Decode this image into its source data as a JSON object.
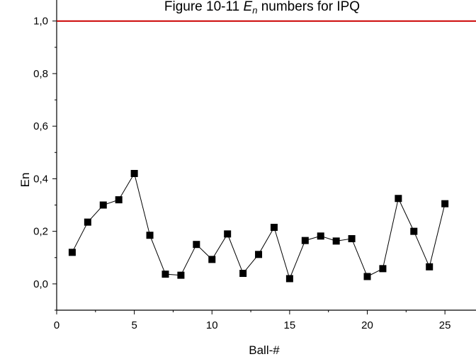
{
  "chart_data": {
    "type": "line",
    "title": "Figure 10-11 En numbers for IPQ",
    "xlabel": "Ball-#",
    "ylabel": "En",
    "xlim": [
      0,
      27
    ],
    "ylim": [
      -0.1,
      1.08
    ],
    "x_ticks": [
      0,
      5,
      10,
      15,
      20,
      25
    ],
    "x_tick_labels": [
      "0",
      "5",
      "10",
      "15",
      "20",
      "25"
    ],
    "y_ticks": [
      0.0,
      0.2,
      0.4,
      0.6,
      0.8,
      1.0
    ],
    "y_tick_labels": [
      "0,0",
      "0,2",
      "0,4",
      "0,6",
      "0,8",
      "1,0"
    ],
    "grid": false,
    "reference_line": {
      "y": 1.0,
      "color": "#cc0000"
    },
    "series": [
      {
        "marker": "square",
        "color": "#000000",
        "x": [
          1,
          2,
          3,
          4,
          5,
          6,
          7,
          8,
          9,
          10,
          11,
          12,
          13,
          14,
          15,
          16,
          17,
          18,
          19,
          20,
          21,
          22,
          23,
          24,
          25
        ],
        "values": [
          0.12,
          0.235,
          0.3,
          0.32,
          0.42,
          0.185,
          0.037,
          0.033,
          0.15,
          0.093,
          0.19,
          0.04,
          0.112,
          0.215,
          0.02,
          0.165,
          0.182,
          0.163,
          0.172,
          0.028,
          0.058,
          0.325,
          0.2,
          0.065,
          0.305
        ]
      }
    ]
  }
}
